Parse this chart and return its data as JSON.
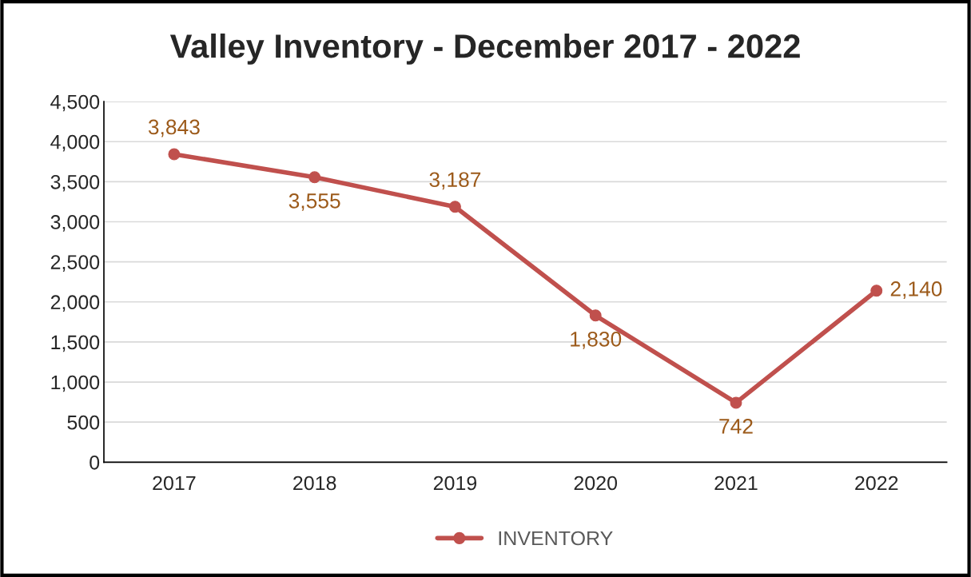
{
  "chart_data": {
    "type": "line",
    "title": "Valley Inventory - December 2017 - 2022",
    "categories": [
      "2017",
      "2018",
      "2019",
      "2020",
      "2021",
      "2022"
    ],
    "series": [
      {
        "name": "INVENTORY",
        "color": "#c0504d",
        "values": [
          3843,
          3555,
          3187,
          1830,
          742,
          2140
        ],
        "value_labels": [
          "3,843",
          "3,555",
          "3,187",
          "1,830",
          "742",
          "2,140"
        ]
      }
    ],
    "ylim": [
      0,
      4500
    ],
    "yticks": [
      0,
      500,
      {
        "value": 1000,
        "label": "1,000"
      },
      {
        "value": 1500,
        "label": "1,500"
      },
      {
        "value": 2000,
        "label": "2,000"
      },
      {
        "value": 2500,
        "label": "2,500"
      },
      {
        "value": 3000,
        "label": "3,000"
      },
      {
        "value": 3500,
        "label": "3,500"
      },
      {
        "value": 4000,
        "label": "4,000"
      },
      {
        "value": 4500,
        "label": "4,500"
      }
    ],
    "grid": "y",
    "legend": "bottom",
    "marker": "circle",
    "line_style": "solid"
  }
}
